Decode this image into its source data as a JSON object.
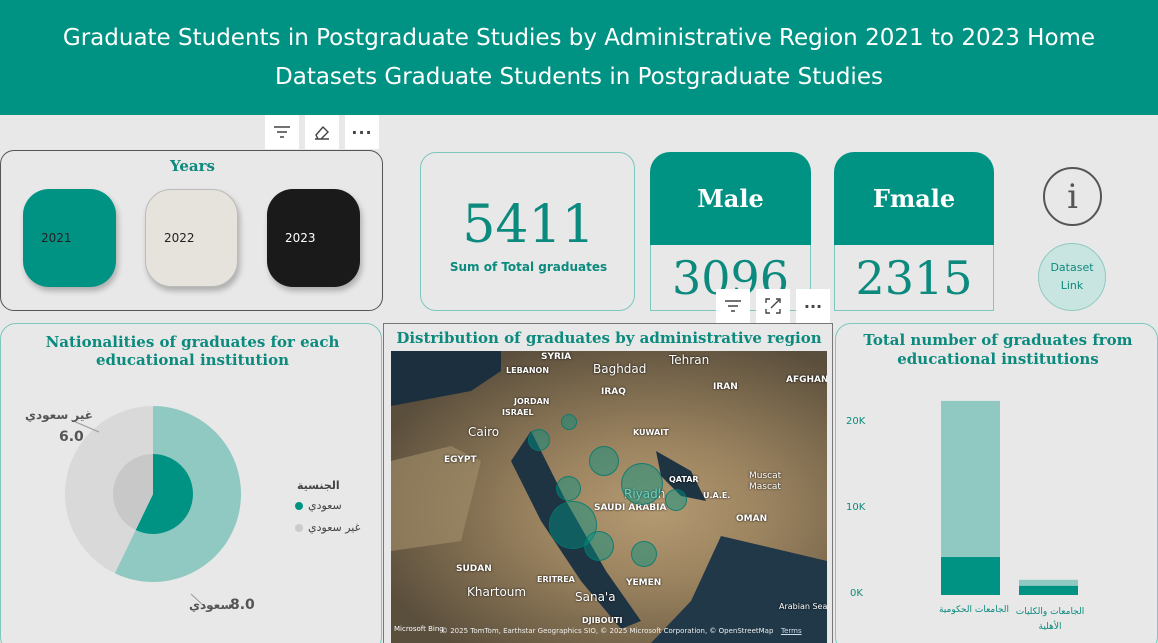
{
  "header": {
    "title": "Graduate Students in Postgraduate Studies by Administrative Region 2021 to 2023 Home Datasets Graduate Students in Postgraduate Studies"
  },
  "years": {
    "title": "Years",
    "items": [
      "2021",
      "2022",
      "2023"
    ]
  },
  "total": {
    "value": "5411",
    "label": "Sum of Total graduates"
  },
  "male": {
    "label": "Male",
    "value": "3096"
  },
  "female": {
    "label": "Fmale",
    "value": "2315"
  },
  "info": {
    "dataset_link": "Dataset Link"
  },
  "nationality_chart": {
    "title": "Nationalities of graduates for each educational institution",
    "legend_title": "الجنسية",
    "legend": [
      "سعودي",
      "غير سعودي"
    ],
    "slice_labels": [
      {
        "name": "غير سعودي",
        "value": "6.0"
      },
      {
        "name": "سعودي",
        "value": "8.0"
      }
    ]
  },
  "map": {
    "title": "Distribution of graduates by administrative region",
    "labels": [
      "SYRIA",
      "LEBANON",
      "JORDAN",
      "ISRAEL",
      "IRAQ",
      "KUWAIT",
      "IRAN",
      "AFGHAN",
      "EGYPT",
      "QATAR",
      "U.A.E.",
      "SAUDI ARABIA",
      "OMAN",
      "SUDAN",
      "ERITREA",
      "YEMEN",
      "DJIBOUTI",
      "Arabian Sea"
    ],
    "cities": [
      "Tehran",
      "Baghdad",
      "Cairo",
      "Riyadh",
      "Muscat",
      "Mascat",
      "Khartoum",
      "Sana'a"
    ],
    "attribution": "© 2025 TomTom, Earthstar Geographics SIO, © 2025 Microsoft Corporation, © OpenStreetMap",
    "terms": "Terms",
    "logo": "Microsoft Bing"
  },
  "institution_chart": {
    "title": "Total number of graduates from educational institutions",
    "y_ticks": [
      "20K",
      "10K",
      "0K"
    ],
    "categories": [
      "الجامعات الحكومية",
      "الجامعات والكليات الأهلية"
    ]
  },
  "colors": {
    "teal": "#009384",
    "light_teal": "#8fc9c1",
    "dark": "#1a1a1a",
    "beige": "#e6e2dc"
  },
  "chart_data": [
    {
      "type": "pie",
      "title": "Nationalities of graduates for each educational institution",
      "categories": [
        "سعودي",
        "غير سعودي"
      ],
      "values": [
        8.0,
        6.0
      ],
      "legend": "right"
    },
    {
      "type": "bar",
      "title": "Total number of graduates from educational institutions",
      "categories": [
        "الجامعات الحكومية",
        "الجامعات والكليات الأهلية"
      ],
      "series": [
        {
          "values": [
            4500,
            1100
          ]
        },
        {
          "values": [
            18500,
            700
          ]
        }
      ],
      "ylim": [
        0,
        25000
      ],
      "stacked": true
    }
  ]
}
